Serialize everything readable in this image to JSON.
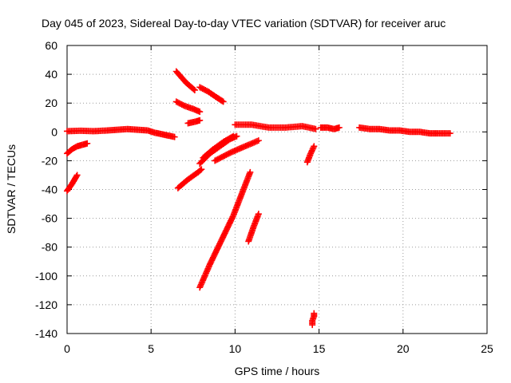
{
  "chart_data": {
    "type": "scatter",
    "title": "Day 045 of 2023, Sidereal Day-to-day VTEC variation (SDTVAR) for receiver aruc",
    "xlabel": "GPS time / hours",
    "ylabel": "SDTVAR / TECUs",
    "xlim": [
      0,
      25
    ],
    "ylim": [
      -140,
      60
    ],
    "xticks": [
      0,
      5,
      10,
      15,
      20,
      25
    ],
    "yticks": [
      60,
      40,
      20,
      0,
      -20,
      -40,
      -60,
      -80,
      -100,
      -120,
      -140
    ],
    "grid": true,
    "marker": "+",
    "color": "#ff0000",
    "series": [
      {
        "x": [
          0.0,
          0.8,
          1.6,
          2.4,
          3.0,
          3.6,
          4.2,
          4.8,
          5.2,
          5.6,
          6.0,
          6.4
        ],
        "y": [
          0.5,
          0.8,
          0.5,
          1.0,
          1.5,
          2.0,
          1.5,
          1.0,
          -0.5,
          -1.5,
          -2.5,
          -3.5
        ]
      },
      {
        "x": [
          0.0,
          0.3,
          0.6,
          0.9,
          1.2
        ],
        "y": [
          -15,
          -12,
          -10,
          -9,
          -8
        ]
      },
      {
        "x": [
          0.0,
          0.3,
          0.6
        ],
        "y": [
          -41,
          -36,
          -30
        ]
      },
      {
        "x": [
          6.5,
          6.8,
          7.1,
          7.4,
          7.6
        ],
        "y": [
          42,
          38,
          34,
          31,
          29
        ]
      },
      {
        "x": [
          6.5,
          7.0,
          7.5,
          7.9
        ],
        "y": [
          21,
          18,
          16,
          14
        ]
      },
      {
        "x": [
          7.2,
          7.6,
          7.9
        ],
        "y": [
          6,
          7,
          8
        ]
      },
      {
        "x": [
          7.9,
          8.4,
          8.9,
          9.3
        ],
        "y": [
          31,
          28,
          24,
          21
        ]
      },
      {
        "x": [
          6.6,
          7.2,
          7.8,
          8.0
        ],
        "y": [
          -39,
          -33,
          -28,
          -26
        ]
      },
      {
        "x": [
          7.9,
          8.5,
          9.1,
          9.7,
          10.1
        ],
        "y": [
          -22,
          -15,
          -10,
          -5,
          -3
        ]
      },
      {
        "x": [
          8.1,
          8.7,
          9.3,
          9.9
        ],
        "y": [
          -18,
          -12,
          -7,
          -3
        ]
      },
      {
        "x": [
          8.8,
          9.8,
          10.8,
          11.4
        ],
        "y": [
          -20,
          -14,
          -9,
          -6
        ]
      },
      {
        "x": [
          7.9,
          8.5,
          9.2,
          9.9,
          10.5,
          10.9
        ],
        "y": [
          -108,
          -92,
          -75,
          -58,
          -40,
          -28
        ]
      },
      {
        "x": [
          10.8,
          11.1,
          11.4
        ],
        "y": [
          -76,
          -66,
          -57
        ]
      },
      {
        "x": [
          10.0,
          11.0,
          12.0,
          13.0,
          14.0,
          14.8
        ],
        "y": [
          5,
          5,
          3,
          3,
          4,
          2
        ]
      },
      {
        "x": [
          14.3,
          14.5,
          14.7
        ],
        "y": [
          -21,
          -15,
          -10
        ]
      },
      {
        "x": [
          14.6,
          14.6,
          14.7,
          14.7
        ],
        "y": [
          -134,
          -131,
          -128,
          -126
        ]
      },
      {
        "x": [
          15.1,
          15.5,
          15.9,
          16.2
        ],
        "y": [
          3,
          3,
          2,
          3
        ]
      },
      {
        "x": [
          17.4,
          18.0,
          18.6,
          19.2,
          19.8,
          20.4,
          21.0,
          21.6,
          22.1,
          22.8
        ],
        "y": [
          3,
          2,
          2,
          1,
          1,
          0,
          0,
          -1,
          -1,
          -1
        ]
      }
    ]
  }
}
